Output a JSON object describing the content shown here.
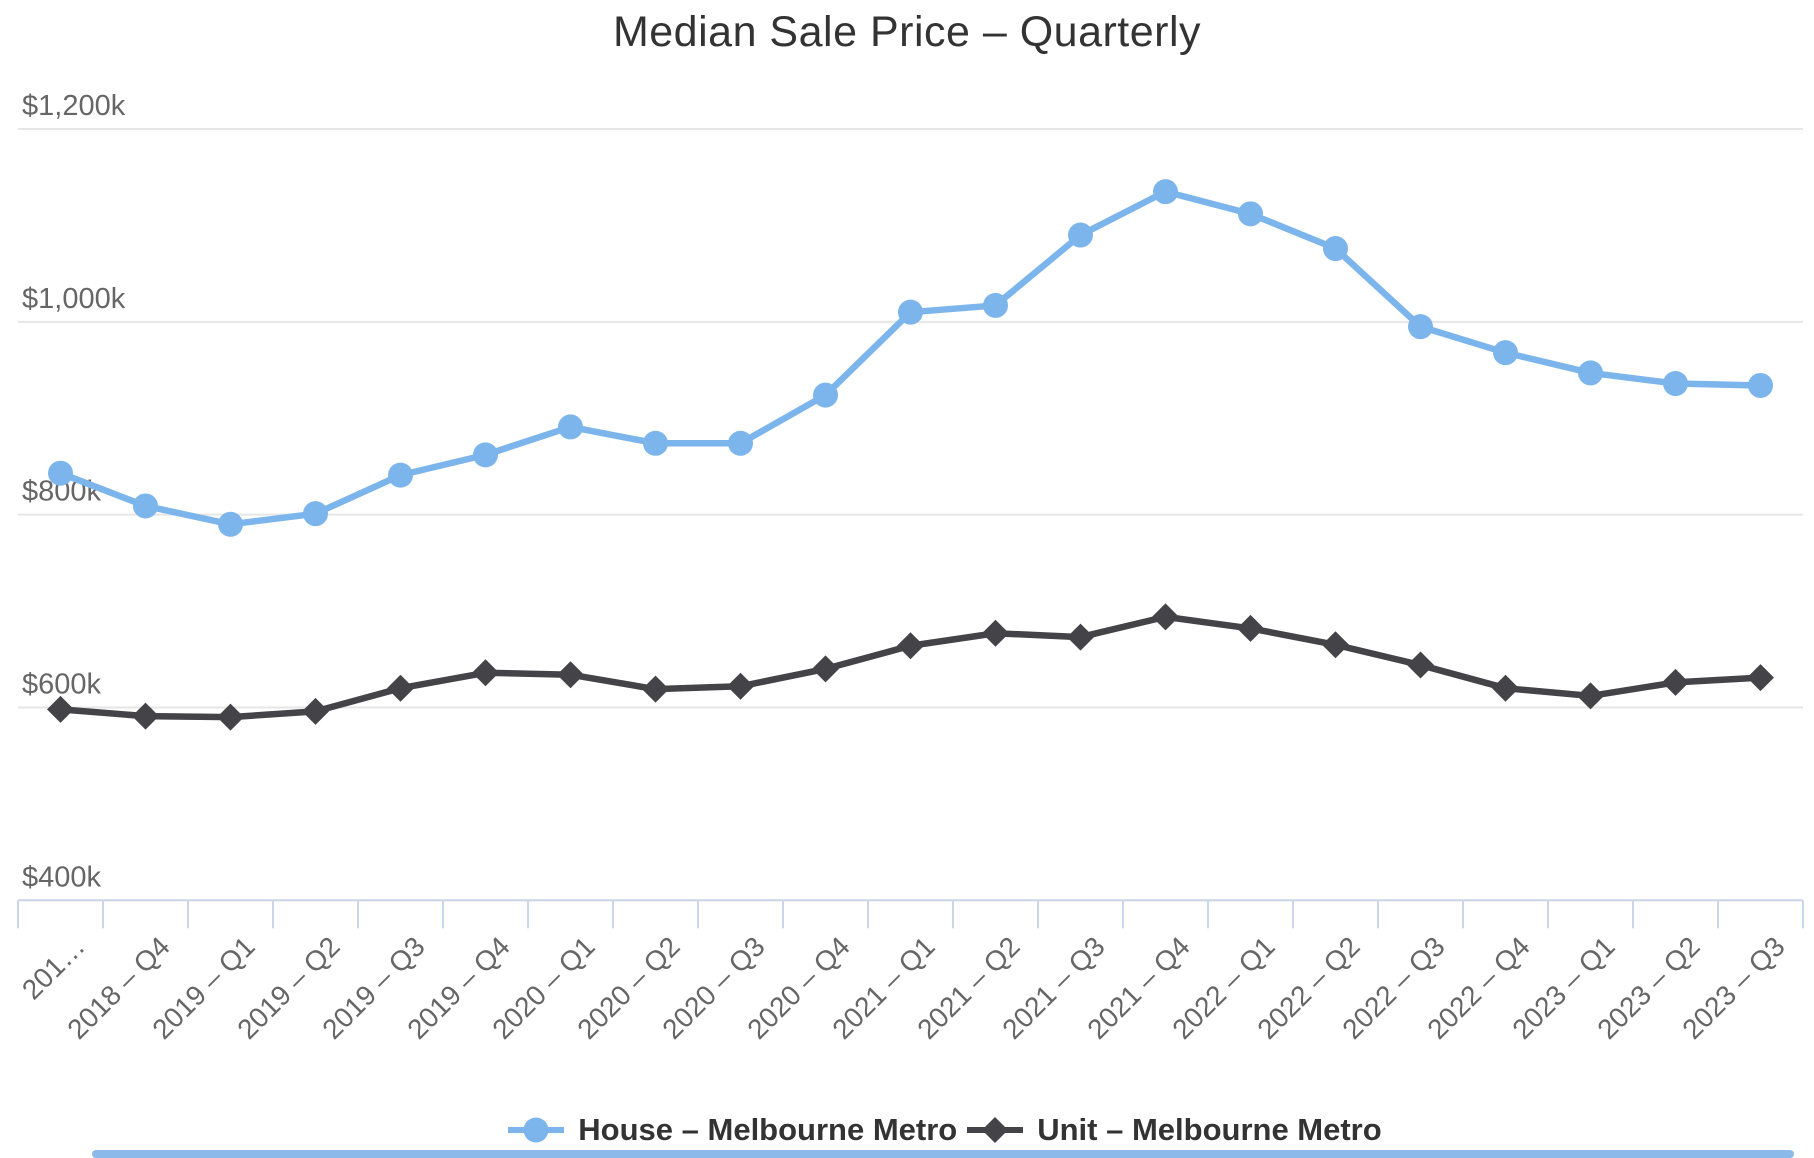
{
  "chart_data": {
    "type": "line",
    "title": "Median Sale Price – Quarterly",
    "categories": [
      "201…",
      "2018 – Q4",
      "2019 – Q1",
      "2019 – Q2",
      "2019 – Q3",
      "2019 – Q4",
      "2020 – Q1",
      "2020 – Q2",
      "2020 – Q3",
      "2020 – Q4",
      "2021 – Q1",
      "2021 – Q2",
      "2021 – Q3",
      "2021 – Q4",
      "2022 – Q1",
      "2022 – Q2",
      "2022 – Q3",
      "2022 – Q4",
      "2023 – Q1",
      "2023 – Q2",
      "2023 – Q3"
    ],
    "series": [
      {
        "name": "House – Melbourne Metro",
        "color": "#7cb5ec",
        "marker": "circle",
        "values": [
          843,
          809,
          790,
          801,
          841,
          862,
          891,
          874,
          874,
          924,
          1010,
          1017,
          1090,
          1135,
          1112,
          1076,
          995,
          968,
          947,
          936,
          934
        ]
      },
      {
        "name": "Unit – Melbourne Metro",
        "color": "#434348",
        "marker": "diamond",
        "values": [
          598,
          591,
          590,
          596,
          620,
          636,
          634,
          619,
          622,
          640,
          664,
          677,
          673,
          694,
          682,
          665,
          644,
          620,
          612,
          626,
          631
        ]
      }
    ],
    "y_axis": {
      "tick_labels": [
        "$1,200k",
        "$1,000k",
        "$800k",
        "$600k",
        "$400k"
      ],
      "tick_values": [
        1200,
        1000,
        800,
        600,
        400
      ],
      "min": 400,
      "max": 1200,
      "unit": "$k"
    },
    "x_axis": {
      "label_rotation": -45
    },
    "grid": true,
    "legend_position": "bottom"
  },
  "styles": {
    "house_color": "#7cb5ec",
    "unit_color": "#434348",
    "grid_color": "#e6e6e6",
    "axis_color": "#ccd6eb",
    "axis_label_color": "#666666",
    "text_color": "#333333",
    "bottom_bar_color": "#8ab9ea",
    "background": "#ffffff"
  }
}
